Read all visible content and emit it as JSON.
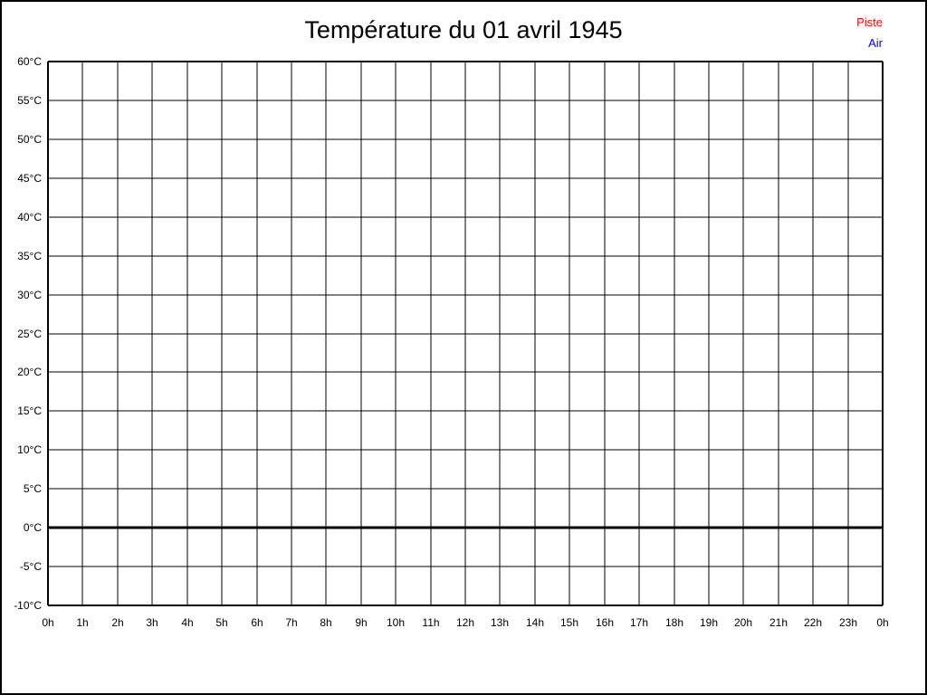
{
  "page": {
    "title": "Température du 01 avril 1945"
  },
  "legend": {
    "position": "top-right",
    "items": [
      {
        "label": "Piste",
        "color": "#ff0000"
      },
      {
        "label": "Air",
        "color": "#0000ff"
      }
    ]
  },
  "chart_data": {
    "type": "line",
    "title": "Température du 01 avril 1945",
    "xlabel": "",
    "ylabel": "",
    "x_tick_labels": [
      "0h",
      "1h",
      "2h",
      "3h",
      "4h",
      "5h",
      "6h",
      "7h",
      "8h",
      "9h",
      "10h",
      "11h",
      "12h",
      "13h",
      "14h",
      "15h",
      "16h",
      "17h",
      "18h",
      "19h",
      "20h",
      "21h",
      "22h",
      "23h",
      "0h"
    ],
    "y_tick_values": [
      60,
      55,
      50,
      45,
      40,
      35,
      30,
      25,
      20,
      15,
      10,
      5,
      0,
      -5,
      -10
    ],
    "y_tick_labels": [
      "60°C",
      "55°C",
      "50°C",
      "45°C",
      "40°C",
      "35°C",
      "30°C",
      "25°C",
      "20°C",
      "15°C",
      "10°C",
      "5°C",
      "0°C",
      "-5°C",
      "-10°C"
    ],
    "ylim": [
      -10,
      60
    ],
    "xlim_hours": [
      0,
      24
    ],
    "grid": true,
    "gridline_color": "#000000",
    "zero_line_emphasized": true,
    "legend_position": "top-right",
    "series": [
      {
        "name": "Piste",
        "color": "#ff0000",
        "points": []
      },
      {
        "name": "Air",
        "color": "#0000ff",
        "points": []
      }
    ]
  }
}
